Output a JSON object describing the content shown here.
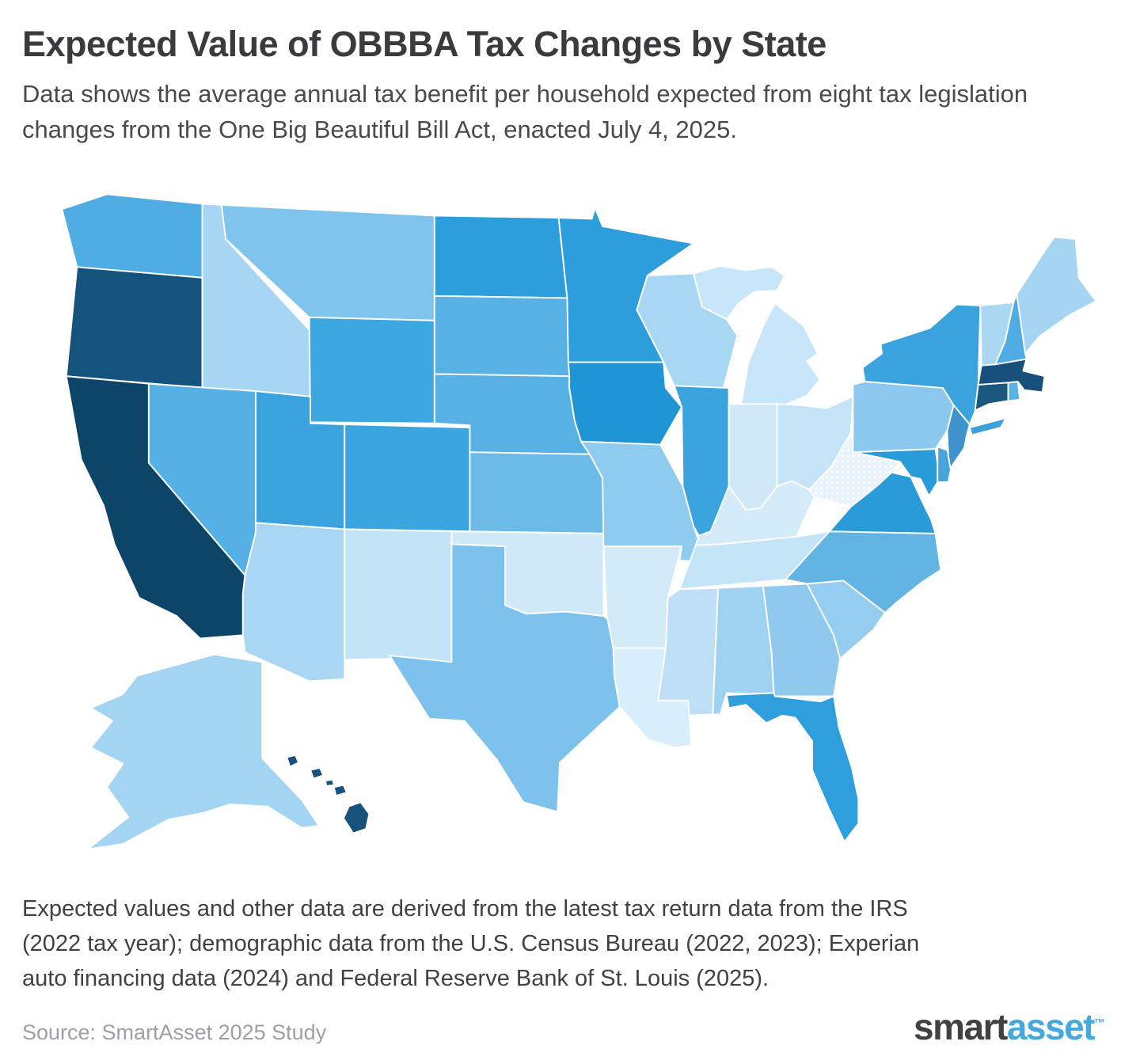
{
  "header": {
    "title": "Expected Value of OBBBA Tax Changes by State",
    "subtitle": "Data shows the average annual tax benefit per household expected from eight tax legislation changes from the One Big Beautiful Bill Act, enacted July 4, 2025."
  },
  "footer": {
    "note": "Expected values and other data are derived from the latest tax return data from the IRS (2022 tax year); demographic data from the U.S. Census Bureau (2022, 2023); Experian auto financing data (2024) and Federal Reserve Bank of St. Louis (2025).",
    "source": "Source: SmartAsset 2025 Study",
    "logo": {
      "prefix": "smart",
      "suffix": "asset",
      "trademark": "™",
      "prefix_color": "#414042",
      "suffix_color": "#45a8df"
    }
  },
  "chart_data": {
    "type": "choropleth_map",
    "region": "United States (Albers layout with Alaska and Hawaii insets)",
    "title": "Expected Value of OBBBA Tax Changes by State",
    "legend": "none shown — darker blue indicates a higher expected average annual tax benefit per household",
    "border_color": "#ffffff",
    "states": [
      {
        "abbr": "WA",
        "name": "Washington",
        "fill": "#4fade3"
      },
      {
        "abbr": "OR",
        "name": "Oregon",
        "fill": "#14537c"
      },
      {
        "abbr": "CA",
        "name": "California",
        "fill": "#0d4568"
      },
      {
        "abbr": "AK",
        "name": "Alaska",
        "fill": "#a3d4f2"
      },
      {
        "abbr": "HI",
        "name": "Hawaii",
        "fill": "#16527b"
      },
      {
        "abbr": "ID",
        "name": "Idaho",
        "fill": "#a6d6f3"
      },
      {
        "abbr": "NV",
        "name": "Nevada",
        "fill": "#55b0e4"
      },
      {
        "abbr": "MT",
        "name": "Montana",
        "fill": "#7ec4ec"
      },
      {
        "abbr": "WY",
        "name": "Wyoming",
        "fill": "#3ca7e0"
      },
      {
        "abbr": "UT",
        "name": "Utah",
        "fill": "#3aa3de"
      },
      {
        "abbr": "CO",
        "name": "Colorado",
        "fill": "#3ba5df"
      },
      {
        "abbr": "AZ",
        "name": "Arizona",
        "fill": "#a9d7f3"
      },
      {
        "abbr": "NM",
        "name": "New Mexico",
        "fill": "#c3e3f7"
      },
      {
        "abbr": "ND",
        "name": "North Dakota",
        "fill": "#2d9edc"
      },
      {
        "abbr": "SD",
        "name": "South Dakota",
        "fill": "#58b1e4"
      },
      {
        "abbr": "NE",
        "name": "Nebraska",
        "fill": "#58b1e4"
      },
      {
        "abbr": "KS",
        "name": "Kansas",
        "fill": "#6cbae8"
      },
      {
        "abbr": "OK",
        "name": "Oklahoma",
        "fill": "#cfe9f9"
      },
      {
        "abbr": "TX",
        "name": "Texas",
        "fill": "#7cc2ec"
      },
      {
        "abbr": "MN",
        "name": "Minnesota",
        "fill": "#2d9edc"
      },
      {
        "abbr": "IA",
        "name": "Iowa",
        "fill": "#1f95d6"
      },
      {
        "abbr": "MO",
        "name": "Missouri",
        "fill": "#8fcaef"
      },
      {
        "abbr": "AR",
        "name": "Arkansas",
        "fill": "#d3ebf9"
      },
      {
        "abbr": "LA",
        "name": "Louisiana",
        "fill": "#d8eefa"
      },
      {
        "abbr": "WI",
        "name": "Wisconsin",
        "fill": "#a8d7f3"
      },
      {
        "abbr": "IL",
        "name": "Illinois",
        "fill": "#3ba3dd"
      },
      {
        "abbr": "MI",
        "name": "Michigan",
        "fill": "#c8e6f9"
      },
      {
        "abbr": "IN",
        "name": "Indiana",
        "fill": "#cfe9f9"
      },
      {
        "abbr": "OH",
        "name": "Ohio",
        "fill": "#c5e4f8"
      },
      {
        "abbr": "KY",
        "name": "Kentucky",
        "fill": "#d4ecf9"
      },
      {
        "abbr": "TN",
        "name": "Tennessee",
        "fill": "#c4e4f7"
      },
      {
        "abbr": "MS",
        "name": "Mississippi",
        "fill": "#bedff6"
      },
      {
        "abbr": "AL",
        "name": "Alabama",
        "fill": "#9fd2f1"
      },
      {
        "abbr": "GA",
        "name": "Georgia",
        "fill": "#8fcaee"
      },
      {
        "abbr": "FL",
        "name": "Florida",
        "fill": "#2e9edd"
      },
      {
        "abbr": "SC",
        "name": "South Carolina",
        "fill": "#94cdef"
      },
      {
        "abbr": "NC",
        "name": "North Carolina",
        "fill": "#62b4e2"
      },
      {
        "abbr": "VA",
        "name": "Virginia",
        "fill": "#2a9bd9"
      },
      {
        "abbr": "WV",
        "name": "West Virginia",
        "fill": "#e9f3fb",
        "texture": "white-dots"
      },
      {
        "abbr": "MD",
        "name": "Maryland",
        "fill": "#2a9bd9"
      },
      {
        "abbr": "DE",
        "name": "Delaware",
        "fill": "#45a5dc"
      },
      {
        "abbr": "PA",
        "name": "Pennsylvania",
        "fill": "#8cc8ed"
      },
      {
        "abbr": "NJ",
        "name": "New Jersey",
        "fill": "#3e93cc"
      },
      {
        "abbr": "NY",
        "name": "New York",
        "fill": "#3aa3de"
      },
      {
        "abbr": "CT",
        "name": "Connecticut",
        "fill": "#1b587f"
      },
      {
        "abbr": "RI",
        "name": "Rhode Island",
        "fill": "#5bb3e4"
      },
      {
        "abbr": "MA",
        "name": "Massachusetts",
        "fill": "#17507a"
      },
      {
        "abbr": "VT",
        "name": "Vermont",
        "fill": "#aad8f3"
      },
      {
        "abbr": "NH",
        "name": "New Hampshire",
        "fill": "#4fade3"
      },
      {
        "abbr": "ME",
        "name": "Maine",
        "fill": "#a5d5f2"
      }
    ]
  }
}
